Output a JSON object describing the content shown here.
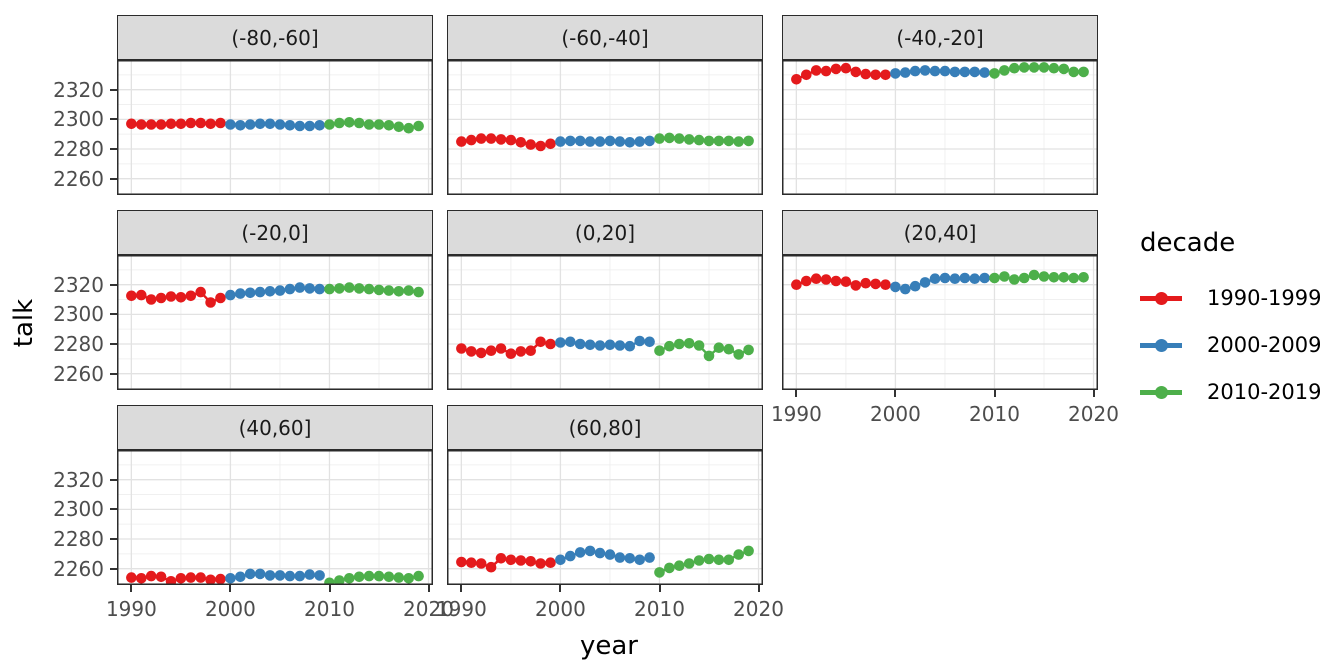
{
  "figure": {
    "y_axis_title": "talk",
    "x_axis_title": "year"
  },
  "legend": {
    "title": "decade",
    "entries": [
      {
        "label": "1990-1999",
        "color": "#E41A1C"
      },
      {
        "label": "2000-2009",
        "color": "#377EB8"
      },
      {
        "label": "2010-2019",
        "color": "#4DAF4A"
      }
    ]
  },
  "chart_data": {
    "type": "scatter",
    "title": "",
    "xlabel": "year",
    "ylabel": "talk",
    "legend_title": "decade",
    "legend_position": "right",
    "grid": "major+minor",
    "x_ticks": [
      1990,
      2000,
      2010,
      2020
    ],
    "x_minor_ticks": [
      1995,
      2005,
      2015
    ],
    "y_ticks": [
      2320,
      2300,
      2280,
      2260
    ],
    "y_minor_ticks": [
      2250,
      2270,
      2290,
      2310,
      2330
    ],
    "xlim": [
      1988.55,
      2020.45
    ],
    "ylim": [
      2249,
      2340
    ],
    "series_colors": {
      "1990-1999": "#E41A1C",
      "2000-2009": "#377EB8",
      "2010-2019": "#4DAF4A"
    },
    "facets": [
      {
        "label": "(-80,-60]",
        "series": [
          {
            "name": "1990-1999",
            "x": [
              1990,
              1991,
              1992,
              1993,
              1994,
              1995,
              1996,
              1997,
              1998,
              1999
            ],
            "y": [
              2297,
              2296.5,
              2296.5,
              2296.5,
              2297,
              2297,
              2297.5,
              2297.5,
              2297,
              2297.5
            ]
          },
          {
            "name": "2000-2009",
            "x": [
              2000,
              2001,
              2002,
              2003,
              2004,
              2005,
              2006,
              2007,
              2008,
              2009
            ],
            "y": [
              2296.5,
              2296,
              2296.5,
              2297,
              2297,
              2296.5,
              2296,
              2295.5,
              2295.5,
              2296
            ]
          },
          {
            "name": "2010-2019",
            "x": [
              2010,
              2011,
              2012,
              2013,
              2014,
              2015,
              2016,
              2017,
              2018,
              2019
            ],
            "y": [
              2296.5,
              2297.5,
              2298,
              2297.5,
              2296.5,
              2296.5,
              2296,
              2295,
              2294,
              2295.5
            ]
          }
        ]
      },
      {
        "label": "(-60,-40]",
        "series": [
          {
            "name": "1990-1999",
            "x": [
              1990,
              1991,
              1992,
              1993,
              1994,
              1995,
              1996,
              1997,
              1998,
              1999
            ],
            "y": [
              2285,
              2286,
              2287,
              2287,
              2286.5,
              2286,
              2284.5,
              2283,
              2282,
              2283.5
            ]
          },
          {
            "name": "2000-2009",
            "x": [
              2000,
              2001,
              2002,
              2003,
              2004,
              2005,
              2006,
              2007,
              2008,
              2009
            ],
            "y": [
              2285,
              2285.5,
              2285.5,
              2285,
              2285,
              2285.5,
              2285,
              2284.5,
              2285,
              2285.5
            ]
          },
          {
            "name": "2010-2019",
            "x": [
              2010,
              2011,
              2012,
              2013,
              2014,
              2015,
              2016,
              2017,
              2018,
              2019
            ],
            "y": [
              2287,
              2287.5,
              2287,
              2286.5,
              2286,
              2285.5,
              2285.5,
              2285.5,
              2285,
              2285.5
            ]
          }
        ]
      },
      {
        "label": "(-40,-20]",
        "series": [
          {
            "name": "1990-1999",
            "x": [
              1990,
              1991,
              1992,
              1993,
              1994,
              1995,
              1996,
              1997,
              1998,
              1999
            ],
            "y": [
              2327,
              2330,
              2333,
              2332.5,
              2334,
              2334.5,
              2332,
              2330.5,
              2330,
              2330
            ]
          },
          {
            "name": "2000-2009",
            "x": [
              2000,
              2001,
              2002,
              2003,
              2004,
              2005,
              2006,
              2007,
              2008,
              2009
            ],
            "y": [
              2331,
              2331.5,
              2332.5,
              2333,
              2332.5,
              2332.5,
              2332,
              2332,
              2332,
              2331.5
            ]
          },
          {
            "name": "2010-2019",
            "x": [
              2010,
              2011,
              2012,
              2013,
              2014,
              2015,
              2016,
              2017,
              2018,
              2019
            ],
            "y": [
              2331,
              2333,
              2334.5,
              2335,
              2335,
              2335,
              2334.5,
              2334,
              2332,
              2332
            ]
          }
        ]
      },
      {
        "label": "(-20,0]",
        "series": [
          {
            "name": "1990-1999",
            "x": [
              1990,
              1991,
              1992,
              1993,
              1994,
              1995,
              1996,
              1997,
              1998,
              1999
            ],
            "y": [
              2312.5,
              2313,
              2310,
              2311,
              2312,
              2311.5,
              2312.5,
              2315,
              2308,
              2311
            ]
          },
          {
            "name": "2000-2009",
            "x": [
              2000,
              2001,
              2002,
              2003,
              2004,
              2005,
              2006,
              2007,
              2008,
              2009
            ],
            "y": [
              2313,
              2314,
              2314.5,
              2315,
              2315.5,
              2316,
              2317,
              2318,
              2317.5,
              2317
            ]
          },
          {
            "name": "2010-2019",
            "x": [
              2010,
              2011,
              2012,
              2013,
              2014,
              2015,
              2016,
              2017,
              2018,
              2019
            ],
            "y": [
              2317,
              2317.5,
              2318,
              2317.5,
              2317,
              2316.5,
              2316,
              2315.5,
              2316,
              2315
            ]
          }
        ]
      },
      {
        "label": "(0,20]",
        "series": [
          {
            "name": "1990-1999",
            "x": [
              1990,
              1991,
              1992,
              1993,
              1994,
              1995,
              1996,
              1997,
              1998,
              1999
            ],
            "y": [
              2277,
              2275,
              2274,
              2275.5,
              2277,
              2273.5,
              2275,
              2275.5,
              2281.5,
              2280
            ]
          },
          {
            "name": "2000-2009",
            "x": [
              2000,
              2001,
              2002,
              2003,
              2004,
              2005,
              2006,
              2007,
              2008,
              2009
            ],
            "y": [
              2281,
              2281.5,
              2280,
              2279.5,
              2279,
              2279.5,
              2279,
              2278.5,
              2282,
              2281.5
            ]
          },
          {
            "name": "2010-2019",
            "x": [
              2010,
              2011,
              2012,
              2013,
              2014,
              2015,
              2016,
              2017,
              2018,
              2019
            ],
            "y": [
              2275.5,
              2278.5,
              2280,
              2280.5,
              2279,
              2272,
              2277.5,
              2276.5,
              2273,
              2276
            ]
          }
        ]
      },
      {
        "label": "(20,40]",
        "series": [
          {
            "name": "1990-1999",
            "x": [
              1990,
              1991,
              1992,
              1993,
              1994,
              1995,
              1996,
              1997,
              1998,
              1999
            ],
            "y": [
              2320,
              2322.5,
              2324,
              2323.5,
              2322.5,
              2322,
              2319.5,
              2321,
              2320.5,
              2320
            ]
          },
          {
            "name": "2000-2009",
            "x": [
              2000,
              2001,
              2002,
              2003,
              2004,
              2005,
              2006,
              2007,
              2008,
              2009
            ],
            "y": [
              2318.5,
              2317,
              2319,
              2321.5,
              2324,
              2324.5,
              2324,
              2324.5,
              2324,
              2324.5
            ]
          },
          {
            "name": "2010-2019",
            "x": [
              2010,
              2011,
              2012,
              2013,
              2014,
              2015,
              2016,
              2017,
              2018,
              2019
            ],
            "y": [
              2324.5,
              2325.5,
              2323.5,
              2324.5,
              2326.5,
              2325.5,
              2325,
              2325,
              2324.5,
              2325
            ]
          }
        ]
      },
      {
        "label": "(40,60]",
        "series": [
          {
            "name": "1990-1999",
            "x": [
              1990,
              1991,
              1992,
              1993,
              1994,
              1995,
              1996,
              1997,
              1998,
              1999
            ],
            "y": [
              2254,
              2253.5,
              2255,
              2254.5,
              2251.5,
              2253.5,
              2254,
              2254,
              2252.5,
              2253
            ]
          },
          {
            "name": "2000-2009",
            "x": [
              2000,
              2001,
              2002,
              2003,
              2004,
              2005,
              2006,
              2007,
              2008,
              2009
            ],
            "y": [
              2253.5,
              2254.5,
              2256.5,
              2256.5,
              2255.5,
              2255.5,
              2255,
              2255,
              2256,
              2255.5
            ]
          },
          {
            "name": "2010-2019",
            "x": [
              2010,
              2011,
              2012,
              2013,
              2014,
              2015,
              2016,
              2017,
              2018,
              2019
            ],
            "y": [
              2250.5,
              2252,
              2253.5,
              2254.5,
              2255,
              2255,
              2254.5,
              2254,
              2253.5,
              2255
            ]
          }
        ]
      },
      {
        "label": "(60,80]",
        "series": [
          {
            "name": "1990-1999",
            "x": [
              1990,
              1991,
              1992,
              1993,
              1994,
              1995,
              1996,
              1997,
              1998,
              1999
            ],
            "y": [
              2264.5,
              2264,
              2263.5,
              2261,
              2267,
              2266,
              2265.5,
              2265,
              2263.5,
              2264
            ]
          },
          {
            "name": "2000-2009",
            "x": [
              2000,
              2001,
              2002,
              2003,
              2004,
              2005,
              2006,
              2007,
              2008,
              2009
            ],
            "y": [
              2266,
              2268.5,
              2271,
              2272,
              2270.5,
              2269.5,
              2267.5,
              2267,
              2266,
              2267.5
            ]
          },
          {
            "name": "2010-2019",
            "x": [
              2010,
              2011,
              2012,
              2013,
              2014,
              2015,
              2016,
              2017,
              2018,
              2019
            ],
            "y": [
              2257.5,
              2260.5,
              2262,
              2263.5,
              2265.5,
              2266.5,
              2266,
              2266,
              2269.5,
              2272
            ]
          }
        ]
      }
    ],
    "style": {
      "grid_major_color": "#E2E2E2",
      "grid_minor_color": "#F0F0F0",
      "panel_border_color": "#2B2B2B",
      "strip_bg_color": "#DBDBDB",
      "tick_text_color": "#4D4D4D"
    }
  }
}
